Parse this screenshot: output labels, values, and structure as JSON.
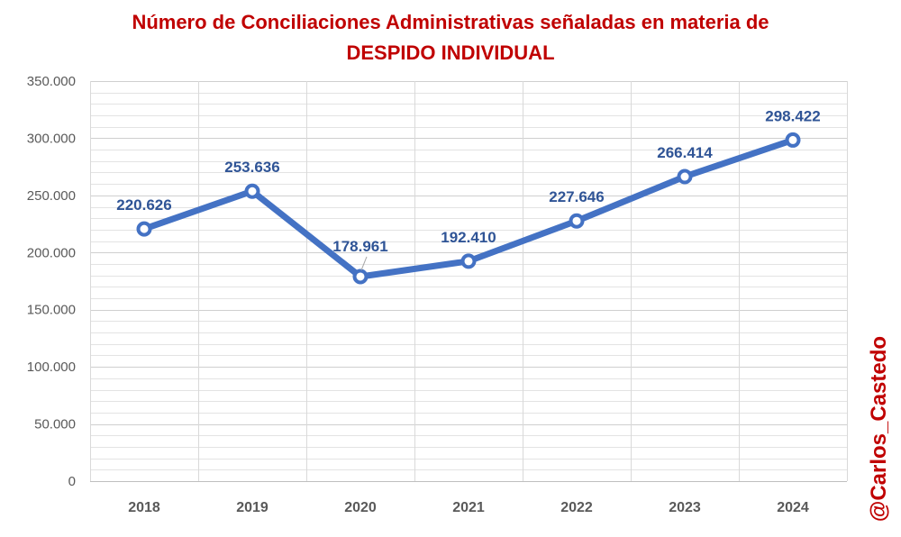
{
  "chart_data": {
    "type": "line",
    "title_line1": "Número de Conciliaciones Administrativas señaladas en materia de",
    "title_line2": "DESPIDO INDIVIDUAL",
    "xlabel": "",
    "ylabel": "",
    "categories": [
      "2018",
      "2019",
      "2020",
      "2021",
      "2022",
      "2023",
      "2024"
    ],
    "series": [
      {
        "values": [
          220626,
          253636,
          178961,
          192410,
          227646,
          266414,
          298422
        ],
        "value_labels": [
          "220.626",
          "253.636",
          "178.961",
          "192.410",
          "227.646",
          "266.414",
          "298.422"
        ],
        "color": "#4472C4"
      }
    ],
    "ylim": [
      0,
      350000
    ],
    "yticks": [
      0,
      50000,
      100000,
      150000,
      200000,
      250000,
      300000,
      350000
    ],
    "ytick_labels": [
      "0",
      "50.000",
      "100.000",
      "150.000",
      "200.000",
      "250.000",
      "300.000",
      "350.000"
    ],
    "grid": true,
    "legend": "none"
  },
  "colors": {
    "title": "#C00000",
    "line": "#4472C4",
    "data_label": "#2F5496",
    "watermark": "#C00000"
  },
  "watermark": "@Carlos_Castedo"
}
